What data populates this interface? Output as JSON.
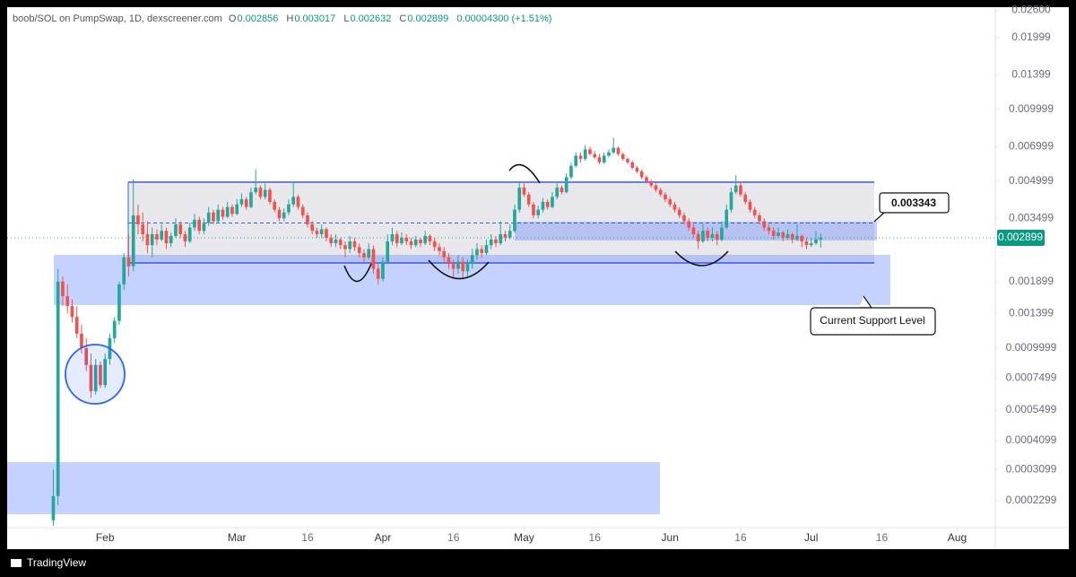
{
  "chart_data": {
    "type": "candlestick",
    "title": "boob/SOL on PumpSwap, 1D, dexscreener.com",
    "header": {
      "o_label": "O",
      "h_label": "H",
      "l_label": "L",
      "c_label": "C",
      "change": "0.00004300 (+1.51%)"
    },
    "footer": "TradingView",
    "annotations": {
      "marked_level": 0.003343,
      "support_note": "Current Support Level"
    },
    "up_color": "#26a69a",
    "down_color": "#ef5350",
    "log_scale": true,
    "ylim": [
      0.000177,
      0.0268
    ],
    "yticks": [
      {
        "value": 0.026,
        "label": "0.02600"
      },
      0.01999,
      0.01399,
      0.009999,
      0.006999,
      0.004999,
      0.003499,
      0.001899,
      0.001399,
      0.0009999,
      0.0007499,
      0.0005499,
      0.0004099,
      0.0003099,
      0.0002299
    ],
    "xlim": [
      -20.8,
      189.1
    ],
    "xticks": [
      {
        "value": 0,
        "label": "Feb"
      },
      {
        "value": 28,
        "label": "Mar"
      },
      {
        "value": 43,
        "label": "16"
      },
      {
        "value": 59,
        "label": "Apr"
      },
      {
        "value": 74,
        "label": "16"
      },
      {
        "value": 89,
        "label": "May"
      },
      {
        "value": 104,
        "label": "16"
      },
      {
        "value": 120,
        "label": "Jun"
      },
      {
        "value": 135,
        "label": "16"
      },
      {
        "value": 150,
        "label": "Jul"
      },
      {
        "value": 165,
        "label": "16"
      },
      {
        "value": 181,
        "label": "Aug"
      }
    ],
    "x": [
      -11,
      -10,
      -9,
      -8,
      -7,
      -6,
      -5,
      -4,
      -3,
      -2,
      -1,
      0,
      1,
      2,
      3,
      4,
      5,
      6,
      7,
      8,
      9,
      10,
      11,
      12,
      13,
      14,
      15,
      16,
      17,
      18,
      19,
      20,
      21,
      22,
      23,
      24,
      25,
      26,
      27,
      28,
      29,
      30,
      31,
      32,
      33,
      34,
      35,
      36,
      37,
      38,
      39,
      40,
      41,
      42,
      43,
      44,
      45,
      46,
      47,
      48,
      49,
      50,
      51,
      52,
      53,
      54,
      55,
      56,
      57,
      58,
      59,
      60,
      61,
      62,
      63,
      64,
      65,
      66,
      67,
      68,
      69,
      70,
      71,
      72,
      73,
      74,
      75,
      76,
      77,
      78,
      79,
      80,
      81,
      82,
      83,
      84,
      85,
      86,
      87,
      88,
      89,
      90,
      91,
      92,
      93,
      94,
      95,
      96,
      97,
      98,
      99,
      100,
      101,
      102,
      103,
      104,
      105,
      106,
      107,
      108,
      109,
      110,
      111,
      112,
      113,
      114,
      115,
      116,
      117,
      118,
      119,
      120,
      121,
      122,
      123,
      124,
      125,
      126,
      127,
      128,
      129,
      130,
      131,
      132,
      133,
      134,
      135,
      136,
      137,
      138,
      139,
      140,
      141,
      142,
      143,
      144,
      145,
      146,
      147,
      148,
      149,
      150,
      151,
      152
    ],
    "ohlc": [
      [
        0.00019,
        0.00031,
        0.00018,
        0.00024
      ],
      [
        0.00024,
        0.00215,
        0.00022,
        0.0019
      ],
      [
        0.0019,
        0.002,
        0.0015,
        0.00165
      ],
      [
        0.00165,
        0.00185,
        0.0014,
        0.0015
      ],
      [
        0.0015,
        0.0016,
        0.00128,
        0.00135
      ],
      [
        0.00135,
        0.0015,
        0.0011,
        0.00115
      ],
      [
        0.00115,
        0.00125,
        0.00095,
        0.001
      ],
      [
        0.001,
        0.0011,
        0.0008,
        0.00085
      ],
      [
        0.00085,
        0.00095,
        0.00062,
        0.00066
      ],
      [
        0.00066,
        0.0009,
        0.00064,
        0.00085
      ],
      [
        0.00085,
        0.00088,
        0.00068,
        0.0007
      ],
      [
        0.0007,
        0.00095,
        0.00068,
        0.0009
      ],
      [
        0.0009,
        0.00115,
        0.00085,
        0.0011
      ],
      [
        0.0011,
        0.00135,
        0.00105,
        0.0013
      ],
      [
        0.0013,
        0.0019,
        0.00125,
        0.00185
      ],
      [
        0.00185,
        0.0025,
        0.00175,
        0.0024
      ],
      [
        0.0024,
        0.003,
        0.002,
        0.0022
      ],
      [
        0.0022,
        0.0051,
        0.0021,
        0.0036
      ],
      [
        0.0036,
        0.004,
        0.003,
        0.0033
      ],
      [
        0.0033,
        0.0037,
        0.0028,
        0.003
      ],
      [
        0.003,
        0.0034,
        0.0025,
        0.0027
      ],
      [
        0.0027,
        0.0032,
        0.0024,
        0.003
      ],
      [
        0.003,
        0.00315,
        0.0027,
        0.00285
      ],
      [
        0.00285,
        0.0033,
        0.0028,
        0.0031
      ],
      [
        0.0031,
        0.0032,
        0.0026,
        0.00275
      ],
      [
        0.00275,
        0.00305,
        0.00265,
        0.00295
      ],
      [
        0.00295,
        0.0035,
        0.0029,
        0.0033
      ],
      [
        0.0033,
        0.0034,
        0.0029,
        0.003
      ],
      [
        0.003,
        0.0031,
        0.00265,
        0.0028
      ],
      [
        0.0028,
        0.00335,
        0.00275,
        0.0032
      ],
      [
        0.0032,
        0.00365,
        0.0031,
        0.00345
      ],
      [
        0.00345,
        0.00355,
        0.003,
        0.0031
      ],
      [
        0.0031,
        0.0035,
        0.003,
        0.00335
      ],
      [
        0.00335,
        0.0039,
        0.00325,
        0.0037
      ],
      [
        0.0037,
        0.0038,
        0.0033,
        0.0034
      ],
      [
        0.0034,
        0.004,
        0.00335,
        0.0038
      ],
      [
        0.0038,
        0.0039,
        0.00345,
        0.00355
      ],
      [
        0.00355,
        0.0041,
        0.0035,
        0.0039
      ],
      [
        0.0039,
        0.004,
        0.00355,
        0.00365
      ],
      [
        0.00365,
        0.0042,
        0.0036,
        0.004
      ],
      [
        0.004,
        0.00445,
        0.0039,
        0.0042
      ],
      [
        0.0042,
        0.0043,
        0.0038,
        0.0039
      ],
      [
        0.0039,
        0.0047,
        0.00385,
        0.0045
      ],
      [
        0.0045,
        0.0056,
        0.0044,
        0.0047
      ],
      [
        0.0047,
        0.0048,
        0.0042,
        0.0043
      ],
      [
        0.0043,
        0.0049,
        0.0042,
        0.0046
      ],
      [
        0.0046,
        0.0047,
        0.004,
        0.0041
      ],
      [
        0.0041,
        0.0042,
        0.0037,
        0.0038
      ],
      [
        0.0038,
        0.0039,
        0.0034,
        0.0035
      ],
      [
        0.0035,
        0.00385,
        0.0034,
        0.0037
      ],
      [
        0.0037,
        0.0042,
        0.0036,
        0.004
      ],
      [
        0.004,
        0.005,
        0.0039,
        0.0043
      ],
      [
        0.0043,
        0.0044,
        0.0038,
        0.0039
      ],
      [
        0.0039,
        0.004,
        0.0035,
        0.0036
      ],
      [
        0.0036,
        0.0037,
        0.0032,
        0.0033
      ],
      [
        0.0033,
        0.0034,
        0.003,
        0.0031
      ],
      [
        0.0031,
        0.0032,
        0.0029,
        0.003
      ],
      [
        0.003,
        0.0033,
        0.0029,
        0.00315
      ],
      [
        0.00315,
        0.0032,
        0.0028,
        0.0029
      ],
      [
        0.0029,
        0.003,
        0.00265,
        0.00275
      ],
      [
        0.00275,
        0.003,
        0.00265,
        0.00285
      ],
      [
        0.00285,
        0.0029,
        0.0026,
        0.0027
      ],
      [
        0.0027,
        0.0028,
        0.0024,
        0.0026
      ],
      [
        0.0026,
        0.00295,
        0.0025,
        0.0028
      ],
      [
        0.0028,
        0.0029,
        0.00255,
        0.00265
      ],
      [
        0.00265,
        0.00275,
        0.0024,
        0.0025
      ],
      [
        0.0025,
        0.0026,
        0.0023,
        0.0024
      ],
      [
        0.0024,
        0.00275,
        0.00235,
        0.0026
      ],
      [
        0.0026,
        0.0027,
        0.00205,
        0.00215
      ],
      [
        0.00215,
        0.00225,
        0.00185,
        0.00195
      ],
      [
        0.00195,
        0.0024,
        0.0019,
        0.0023
      ],
      [
        0.0023,
        0.003,
        0.00225,
        0.0028
      ],
      [
        0.0028,
        0.0032,
        0.0027,
        0.003
      ],
      [
        0.003,
        0.0031,
        0.00265,
        0.00275
      ],
      [
        0.00275,
        0.00305,
        0.0027,
        0.0029
      ],
      [
        0.0029,
        0.003,
        0.0027,
        0.0028
      ],
      [
        0.0028,
        0.0029,
        0.0026,
        0.0027
      ],
      [
        0.0027,
        0.00295,
        0.00265,
        0.00285
      ],
      [
        0.00285,
        0.0029,
        0.00265,
        0.00275
      ],
      [
        0.00275,
        0.0031,
        0.0027,
        0.00295
      ],
      [
        0.00295,
        0.003,
        0.0027,
        0.0028
      ],
      [
        0.0028,
        0.0029,
        0.00255,
        0.00265
      ],
      [
        0.00265,
        0.00275,
        0.00245,
        0.00255
      ],
      [
        0.00255,
        0.00265,
        0.0023,
        0.0024
      ],
      [
        0.0024,
        0.0025,
        0.00215,
        0.00225
      ],
      [
        0.00225,
        0.00235,
        0.00195,
        0.00215
      ],
      [
        0.00215,
        0.00245,
        0.00205,
        0.0023
      ],
      [
        0.0023,
        0.0024,
        0.00195,
        0.0021
      ],
      [
        0.0021,
        0.00235,
        0.002,
        0.00225
      ],
      [
        0.00225,
        0.0026,
        0.00215,
        0.00245
      ],
      [
        0.00245,
        0.00275,
        0.00235,
        0.0026
      ],
      [
        0.0026,
        0.0027,
        0.0024,
        0.0025
      ],
      [
        0.0025,
        0.00285,
        0.00245,
        0.0027
      ],
      [
        0.0027,
        0.003,
        0.0026,
        0.00285
      ],
      [
        0.00285,
        0.00295,
        0.00265,
        0.00275
      ],
      [
        0.00275,
        0.0034,
        0.0027,
        0.003
      ],
      [
        0.003,
        0.0031,
        0.0028,
        0.0029
      ],
      [
        0.0029,
        0.0033,
        0.00285,
        0.0031
      ],
      [
        0.0031,
        0.004,
        0.00305,
        0.0038
      ],
      [
        0.0038,
        0.005,
        0.0037,
        0.0047
      ],
      [
        0.0047,
        0.0049,
        0.0043,
        0.0044
      ],
      [
        0.0044,
        0.0045,
        0.0039,
        0.004
      ],
      [
        0.004,
        0.0041,
        0.0035,
        0.0036
      ],
      [
        0.0036,
        0.00395,
        0.0035,
        0.0038
      ],
      [
        0.0038,
        0.00425,
        0.0037,
        0.0041
      ],
      [
        0.0041,
        0.0042,
        0.0038,
        0.0039
      ],
      [
        0.0039,
        0.0045,
        0.00385,
        0.0043
      ],
      [
        0.0043,
        0.0049,
        0.0042,
        0.0047
      ],
      [
        0.0047,
        0.0048,
        0.0044,
        0.0045
      ],
      [
        0.0045,
        0.0054,
        0.00445,
        0.0052
      ],
      [
        0.0052,
        0.006,
        0.0051,
        0.0058
      ],
      [
        0.0058,
        0.0066,
        0.0057,
        0.0064
      ],
      [
        0.0064,
        0.0066,
        0.006,
        0.0062
      ],
      [
        0.0062,
        0.0071,
        0.0061,
        0.0068
      ],
      [
        0.0068,
        0.007,
        0.0064,
        0.0065
      ],
      [
        0.0065,
        0.0067,
        0.0062,
        0.0063
      ],
      [
        0.0063,
        0.0065,
        0.0059,
        0.006
      ],
      [
        0.006,
        0.0066,
        0.0059,
        0.0064
      ],
      [
        0.0064,
        0.0068,
        0.0063,
        0.0066
      ],
      [
        0.0066,
        0.0076,
        0.0065,
        0.0069
      ],
      [
        0.0069,
        0.007,
        0.0064,
        0.0065
      ],
      [
        0.0065,
        0.0066,
        0.0061,
        0.0062
      ],
      [
        0.0062,
        0.0063,
        0.0059,
        0.006
      ],
      [
        0.006,
        0.0061,
        0.0056,
        0.0057
      ],
      [
        0.0057,
        0.0058,
        0.0054,
        0.0055
      ],
      [
        0.0055,
        0.0056,
        0.0051,
        0.0052
      ],
      [
        0.0052,
        0.0053,
        0.0049,
        0.005
      ],
      [
        0.005,
        0.0051,
        0.0047,
        0.0048
      ],
      [
        0.0048,
        0.0049,
        0.0045,
        0.0046
      ],
      [
        0.0046,
        0.0047,
        0.0043,
        0.0044
      ],
      [
        0.0044,
        0.0045,
        0.0041,
        0.0042
      ],
      [
        0.0042,
        0.0043,
        0.0039,
        0.004
      ],
      [
        0.004,
        0.0041,
        0.0037,
        0.0038
      ],
      [
        0.0038,
        0.0039,
        0.0035,
        0.0036
      ],
      [
        0.0036,
        0.0037,
        0.0033,
        0.0034
      ],
      [
        0.0034,
        0.0035,
        0.0031,
        0.0032
      ],
      [
        0.0032,
        0.0033,
        0.0029,
        0.003
      ],
      [
        0.003,
        0.0031,
        0.0026,
        0.0028
      ],
      [
        0.0028,
        0.0033,
        0.00275,
        0.0031
      ],
      [
        0.0031,
        0.0032,
        0.0028,
        0.0029
      ],
      [
        0.0029,
        0.0032,
        0.0028,
        0.003
      ],
      [
        0.003,
        0.0031,
        0.0027,
        0.00285
      ],
      [
        0.00285,
        0.0034,
        0.0028,
        0.0032
      ],
      [
        0.0032,
        0.004,
        0.00315,
        0.0038
      ],
      [
        0.0038,
        0.0047,
        0.0037,
        0.0045
      ],
      [
        0.0045,
        0.0053,
        0.0044,
        0.0048
      ],
      [
        0.0048,
        0.005,
        0.0043,
        0.0044
      ],
      [
        0.0044,
        0.0045,
        0.004,
        0.0041
      ],
      [
        0.0041,
        0.0042,
        0.0037,
        0.0038
      ],
      [
        0.0038,
        0.0039,
        0.0035,
        0.0036
      ],
      [
        0.0036,
        0.0037,
        0.0033,
        0.0034
      ],
      [
        0.0034,
        0.0035,
        0.0031,
        0.0032
      ],
      [
        0.0032,
        0.0033,
        0.003,
        0.0031
      ],
      [
        0.0031,
        0.0032,
        0.00285,
        0.00295
      ],
      [
        0.00295,
        0.0032,
        0.0029,
        0.00305
      ],
      [
        0.00305,
        0.0031,
        0.0028,
        0.0029
      ],
      [
        0.0029,
        0.00315,
        0.00285,
        0.003
      ],
      [
        0.003,
        0.00305,
        0.00275,
        0.00285
      ],
      [
        0.00285,
        0.0033,
        0.0028,
        0.00295
      ],
      [
        0.00295,
        0.003,
        0.00265,
        0.0028
      ],
      [
        0.0028,
        0.0029,
        0.0026,
        0.0027
      ],
      [
        0.0027,
        0.0029,
        0.00265,
        0.00275
      ],
      [
        0.00275,
        0.0031,
        0.0027,
        0.002856
      ],
      [
        0.002856,
        0.003017,
        0.002632,
        0.002899
      ]
    ]
  }
}
